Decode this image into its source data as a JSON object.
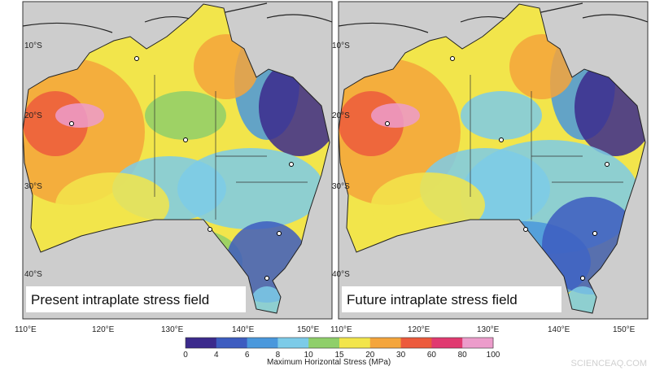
{
  "panels": [
    {
      "label": "Present intraplate stress field"
    },
    {
      "label": "Future intraplate stress field"
    }
  ],
  "lat_labels": [
    "10°S",
    "20°S",
    "30°S",
    "40°S"
  ],
  "lon_labels": [
    "110°E",
    "120°E",
    "130°E",
    "140°E",
    "150°E"
  ],
  "colorbar": {
    "label": "Maximum Horizontal Stress (MPa)",
    "ticks": [
      0,
      4,
      6,
      8,
      10,
      15,
      20,
      30,
      60,
      80,
      100
    ],
    "colors": [
      "#3b2a8c",
      "#3d5cc0",
      "#4a98dc",
      "#7ccbe8",
      "#8fcf6a",
      "#f2e54b",
      "#f4a53b",
      "#ec5a3c",
      "#e03a70",
      "#ec9ccb"
    ]
  },
  "watermark": "SCIENCEAQ.COM"
}
